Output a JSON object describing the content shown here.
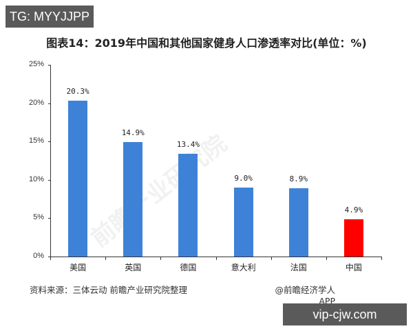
{
  "overlay": {
    "top_tag": "TG: MYYJJPP",
    "bottom_tag": "vip-cjw.com"
  },
  "header": {
    "title": "图表14：2019年中国和其他国家健身人口渗透率对比(单位：%)"
  },
  "footer": {
    "source": "资料来源：三体云动 前瞻产业研究院整理",
    "credit": "@前瞻经济学人APP"
  },
  "watermark": "前瞻产业研究院",
  "colors": {
    "default_bar": "#3e82d8",
    "highlight_bar": "#ff0000",
    "axis": "#333333"
  },
  "chart_data": {
    "type": "bar",
    "title": "图表14：2019年中国和其他国家健身人口渗透率对比(单位：%)",
    "xlabel": "",
    "ylabel": "",
    "categories": [
      "美国",
      "英国",
      "德国",
      "意大利",
      "法国",
      "中国"
    ],
    "values": [
      20.3,
      14.9,
      13.4,
      9.0,
      8.9,
      4.9
    ],
    "value_labels": [
      "20.3%",
      "14.9%",
      "13.4%",
      "9.0%",
      "8.9%",
      "4.9%"
    ],
    "bar_colors": [
      "#3e82d8",
      "#3e82d8",
      "#3e82d8",
      "#3e82d8",
      "#3e82d8",
      "#ff0000"
    ],
    "yticks": [
      "0%",
      "5%",
      "10%",
      "15%",
      "20%",
      "25%"
    ],
    "ylim": [
      0,
      25
    ],
    "grid": false,
    "legend": null
  }
}
